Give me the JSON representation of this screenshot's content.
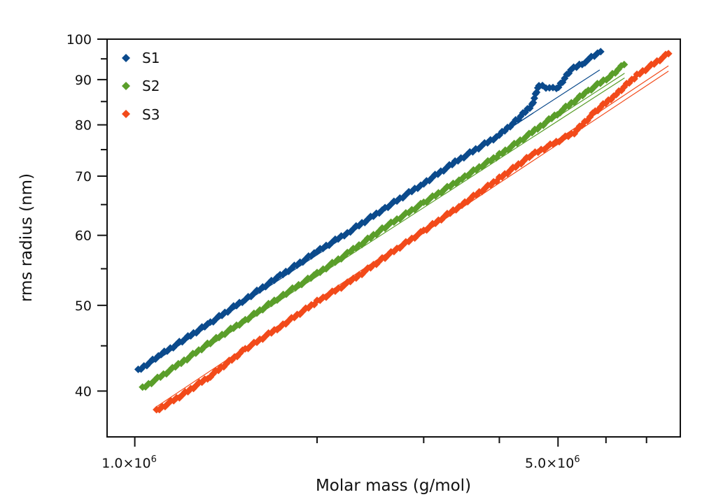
{
  "chart_data": {
    "type": "scatter",
    "title": "",
    "xlabel": "Molar mass (g/mol)",
    "ylabel": "rms radius (nm)",
    "xscale": "log",
    "yscale": "log",
    "xlim": [
      900000,
      7960000
    ],
    "ylim": [
      35.5,
      100
    ],
    "grid": false,
    "legend_position": "top-left",
    "x_ticks": [
      {
        "value": 1000000,
        "label": "1.0×10",
        "exp": "6",
        "major": true
      },
      {
        "value": 2000000,
        "label": "",
        "major": false
      },
      {
        "value": 3000000,
        "label": "",
        "major": false
      },
      {
        "value": 4000000,
        "label": "",
        "major": false
      },
      {
        "value": 5000000,
        "label": "5.0×10",
        "exp": "6",
        "major": true
      },
      {
        "value": 6000000,
        "label": "",
        "major": false
      },
      {
        "value": 7000000,
        "label": "",
        "major": false
      }
    ],
    "y_ticks": [
      {
        "value": 40,
        "label": "40",
        "major": true
      },
      {
        "value": 45,
        "label": "",
        "major": false
      },
      {
        "value": 50,
        "label": "50",
        "major": true
      },
      {
        "value": 55,
        "label": "",
        "major": false
      },
      {
        "value": 60,
        "label": "60",
        "major": true
      },
      {
        "value": 65,
        "label": "",
        "major": false
      },
      {
        "value": 70,
        "label": "70",
        "major": true
      },
      {
        "value": 75,
        "label": "",
        "major": false
      },
      {
        "value": 80,
        "label": "80",
        "major": true
      },
      {
        "value": 85,
        "label": "",
        "major": false
      },
      {
        "value": 90,
        "label": "90",
        "major": true
      },
      {
        "value": 95,
        "label": "",
        "major": false
      },
      {
        "value": 100,
        "label": "100",
        "major": true
      }
    ],
    "series": [
      {
        "name": "S1",
        "color": "#0b4a8c",
        "marker": "diamond",
        "x": [
          1013000,
          1106000,
          1198000,
          1333000,
          1522000,
          1738000,
          2000000,
          2270000,
          2590000,
          3000000,
          3380000,
          4000000,
          4300000,
          4530000,
          4650000,
          4970000,
          5250000,
          5540000,
          5880000
        ],
        "y": [
          42.2,
          44.0,
          45.6,
          47.8,
          50.8,
          54.0,
          57.5,
          60.7,
          64.4,
          68.7,
          72.6,
          77.9,
          81.3,
          84.3,
          88.7,
          87.7,
          92.3,
          94.3,
          96.8
        ],
        "fit_lines": [
          {
            "x": [
              1013000,
              5860000
            ],
            "y": [
              42.4,
              92.3
            ]
          },
          {
            "x": [
              1013000,
              4550000
            ],
            "y": [
              42.0,
              82.5
            ]
          }
        ]
      },
      {
        "name": "S2",
        "color": "#5a9e2a",
        "marker": "diamond",
        "x": [
          1030000,
          1167000,
          1333000,
          1522000,
          1738000,
          2000000,
          2270000,
          2590000,
          3000000,
          3470000,
          4000000,
          4530000,
          5040000,
          5610000,
          6080000,
          6430000
        ],
        "y": [
          40.3,
          42.6,
          45.4,
          48.1,
          51.1,
          54.3,
          57.5,
          61.3,
          65.3,
          69.6,
          74.0,
          78.4,
          82.8,
          87.4,
          90.7,
          93.6
        ],
        "fit_lines": [
          {
            "x": [
              1030000,
              6440000
            ],
            "y": [
              40.5,
              91.5
            ]
          },
          {
            "x": [
              1030000,
              6440000
            ],
            "y": [
              40.2,
              90.4
            ]
          }
        ]
      },
      {
        "name": "S3",
        "color": "#f24a1a",
        "marker": "diamond",
        "x": [
          1086000,
          1198000,
          1333000,
          1522000,
          1738000,
          2000000,
          2270000,
          2590000,
          3000000,
          3470000,
          4000000,
          4530000,
          5320000,
          5760000,
          6240000,
          6750000,
          7610000
        ],
        "y": [
          38.0,
          39.6,
          41.6,
          44.6,
          47.3,
          50.5,
          53.2,
          56.7,
          60.7,
          65.0,
          69.6,
          74.0,
          78.4,
          82.8,
          86.7,
          91.0,
          96.3
        ],
        "fit_lines": [
          {
            "x": [
              1086000,
              7610000
            ],
            "y": [
              38.4,
              93.3
            ]
          },
          {
            "x": [
              1086000,
              7610000
            ],
            "y": [
              38.1,
              92.0
            ]
          }
        ]
      }
    ]
  }
}
